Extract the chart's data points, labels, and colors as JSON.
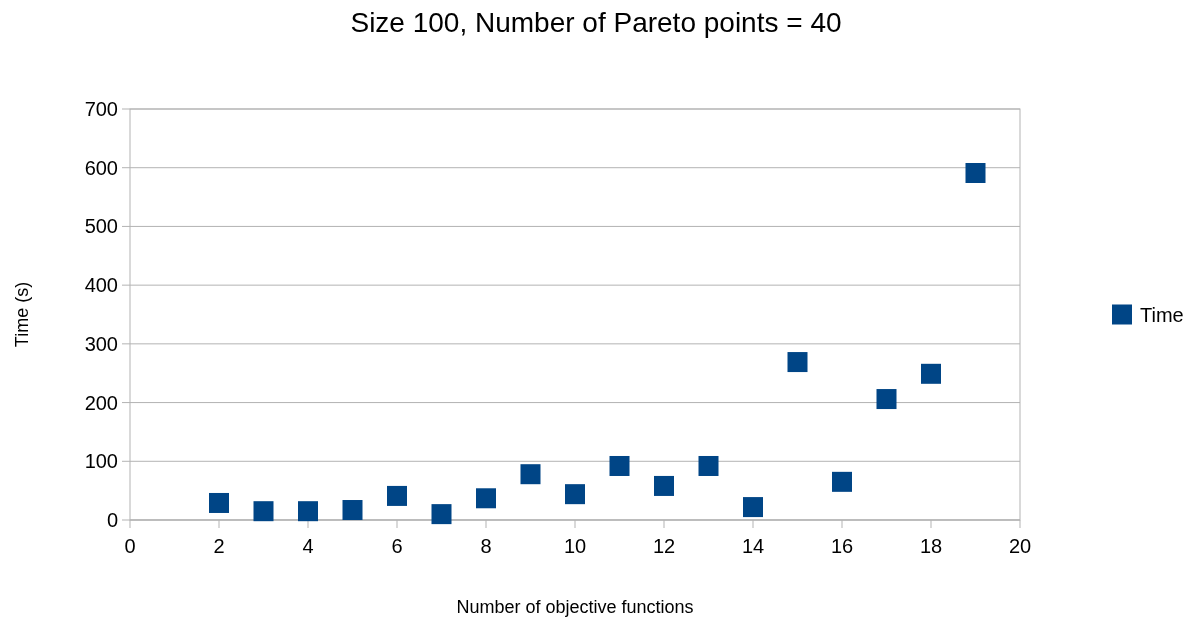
{
  "chart_data": {
    "type": "scatter",
    "title": "Size 100, Number of Pareto points = 40",
    "xlabel": "Number of objective functions",
    "ylabel": "Time (s)",
    "x": [
      2,
      3,
      4,
      5,
      6,
      7,
      8,
      9,
      10,
      11,
      12,
      13,
      14,
      15,
      16,
      17,
      18,
      19
    ],
    "series": [
      {
        "name": "Time",
        "color": "#004586",
        "values": [
          29,
          15,
          15,
          17,
          41,
          10,
          37,
          78,
          44,
          92,
          58,
          92,
          22,
          269,
          65,
          206,
          249,
          591
        ]
      }
    ],
    "xlim": [
      0,
      20
    ],
    "xticks": [
      0,
      2,
      4,
      6,
      8,
      10,
      12,
      14,
      16,
      18,
      20
    ],
    "ylim": [
      0,
      700
    ],
    "yticks": [
      0,
      100,
      200,
      300,
      400,
      500,
      600,
      700
    ],
    "grid": "y",
    "legend": "right",
    "marker": "square"
  }
}
